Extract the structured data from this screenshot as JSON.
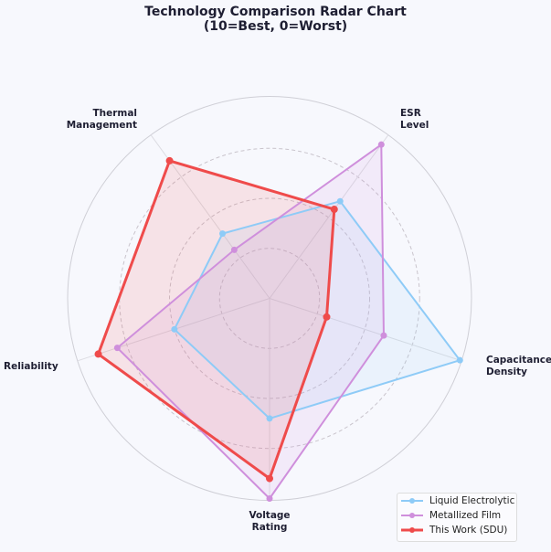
{
  "chart_data": {
    "type": "radar",
    "title": "Technology Comparison Radar Chart",
    "subtitle": "(10=Best, 0=Worst)",
    "axes": [
      {
        "line1": "Capacitance",
        "line2": "Density"
      },
      {
        "line1": "ESR",
        "line2": "Level"
      },
      {
        "line1": "Thermal",
        "line2": "Management"
      },
      {
        "line1": "Reliability",
        "line2": ""
      },
      {
        "line1": "Voltage",
        "line2": "Rating"
      }
    ],
    "rlim": [
      0,
      10
    ],
    "grid_rings": [
      2.5,
      5,
      7.5,
      10
    ],
    "legend_position": "bottom-right",
    "series": [
      {
        "name": "Liquid Electrolytic",
        "color": "#8ecbf7",
        "values": [
          10,
          6,
          4,
          5,
          6
        ]
      },
      {
        "name": "Metallized Film",
        "color": "#cf8fdc",
        "values": [
          6,
          9.5,
          3,
          8,
          10
        ]
      },
      {
        "name": "This Work (SDU)",
        "color": "#ef4b4b",
        "values": [
          3,
          5.5,
          8.5,
          9,
          9
        ]
      }
    ]
  }
}
